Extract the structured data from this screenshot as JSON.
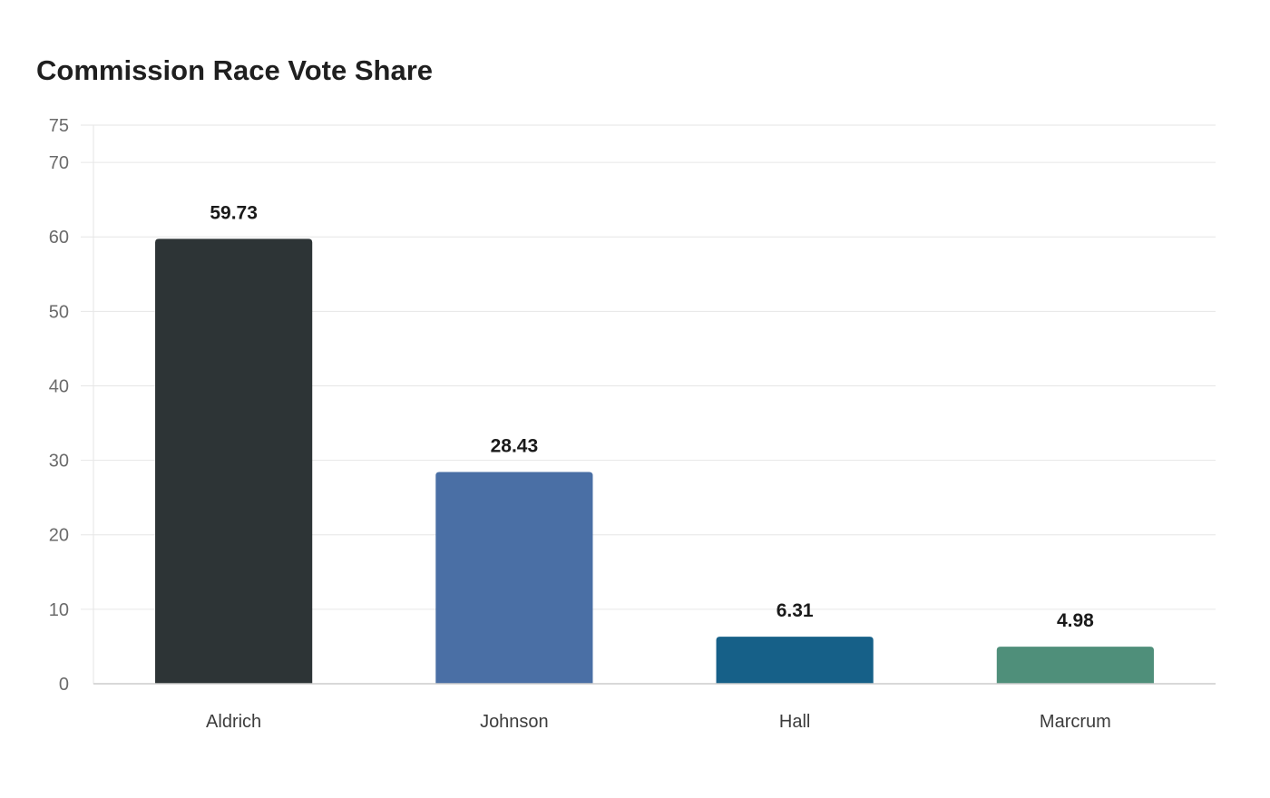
{
  "chart_data": {
    "type": "bar",
    "title": "Commission Race Vote Share",
    "xlabel": "",
    "ylabel": "",
    "categories": [
      "Aldrich",
      "Johnson",
      "Hall",
      "Marcrum"
    ],
    "values": [
      59.73,
      28.43,
      6.31,
      4.98
    ],
    "value_labels": [
      "59.73",
      "28.43",
      "6.31",
      "4.98"
    ],
    "colors": [
      "#2d3436",
      "#4a6fa5",
      "#166088",
      "#4f8f7a"
    ],
    "ylim": [
      0,
      75
    ],
    "yticks": [
      0,
      10,
      20,
      30,
      40,
      50,
      60,
      70,
      75
    ],
    "grid": true,
    "legend": "none"
  }
}
